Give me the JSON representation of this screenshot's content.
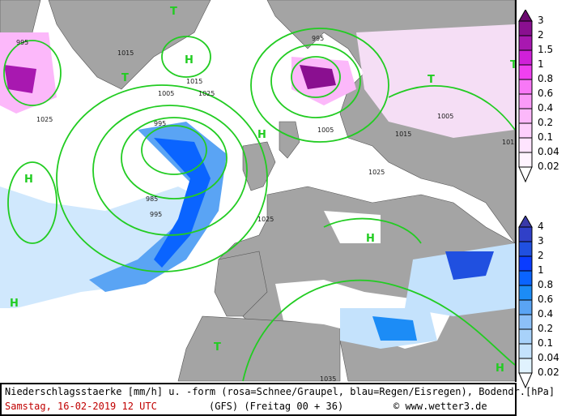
{
  "caption": {
    "line1": "Niederschlagsstaerke [mm/h] u. -form (rosa=Schnee/Graupel, blau=Regen/Eisregen), Bodendr.[hPa]",
    "date": "Samstag, 16-02-2019  12 UTC",
    "model": "(GFS)  (Freitag 00 + 36)",
    "copyright": "© www.wetter3.de"
  },
  "legend_snow": {
    "labels": [
      "3",
      "2",
      "1.5",
      "1",
      "0.8",
      "0.6",
      "0.4",
      "0.2",
      "0.1",
      "0.04",
      "0.02"
    ],
    "colors": [
      "#6a0a6e",
      "#8a0f90",
      "#a818b0",
      "#d020d8",
      "#f040f0",
      "#f878f6",
      "#fa9af8",
      "#fcb8fa",
      "#fdd0fc",
      "#fee4fe",
      "#fff4ff"
    ]
  },
  "legend_rain": {
    "labels": [
      "4",
      "3",
      "2",
      "1",
      "0.8",
      "0.6",
      "0.4",
      "0.2",
      "0.1",
      "0.04",
      "0.02"
    ],
    "colors": [
      "#3a3aa8",
      "#3040c8",
      "#2050e0",
      "#0a3cff",
      "#0a64ff",
      "#1c8cf6",
      "#5aa4f4",
      "#8cc0f8",
      "#a8d2fa",
      "#c4e2fc",
      "#e0f2fe"
    ]
  },
  "map": {
    "pressure_labels": [
      "995",
      "1015",
      "1025",
      "995",
      "1005",
      "1025",
      "1015",
      "995",
      "985",
      "995",
      "1005",
      "1015",
      "1025",
      "1005",
      "1015",
      "1025",
      "1035"
    ],
    "highs": [
      "H",
      "H",
      "H",
      "H",
      "H",
      "H"
    ],
    "lows": [
      "T",
      "T",
      "T",
      "T",
      "T"
    ],
    "colors": {
      "land": "#a4a4a4",
      "sea": "#ffffff",
      "isobar": "#22cc22",
      "pressure_text": "#22aa22"
    }
  }
}
